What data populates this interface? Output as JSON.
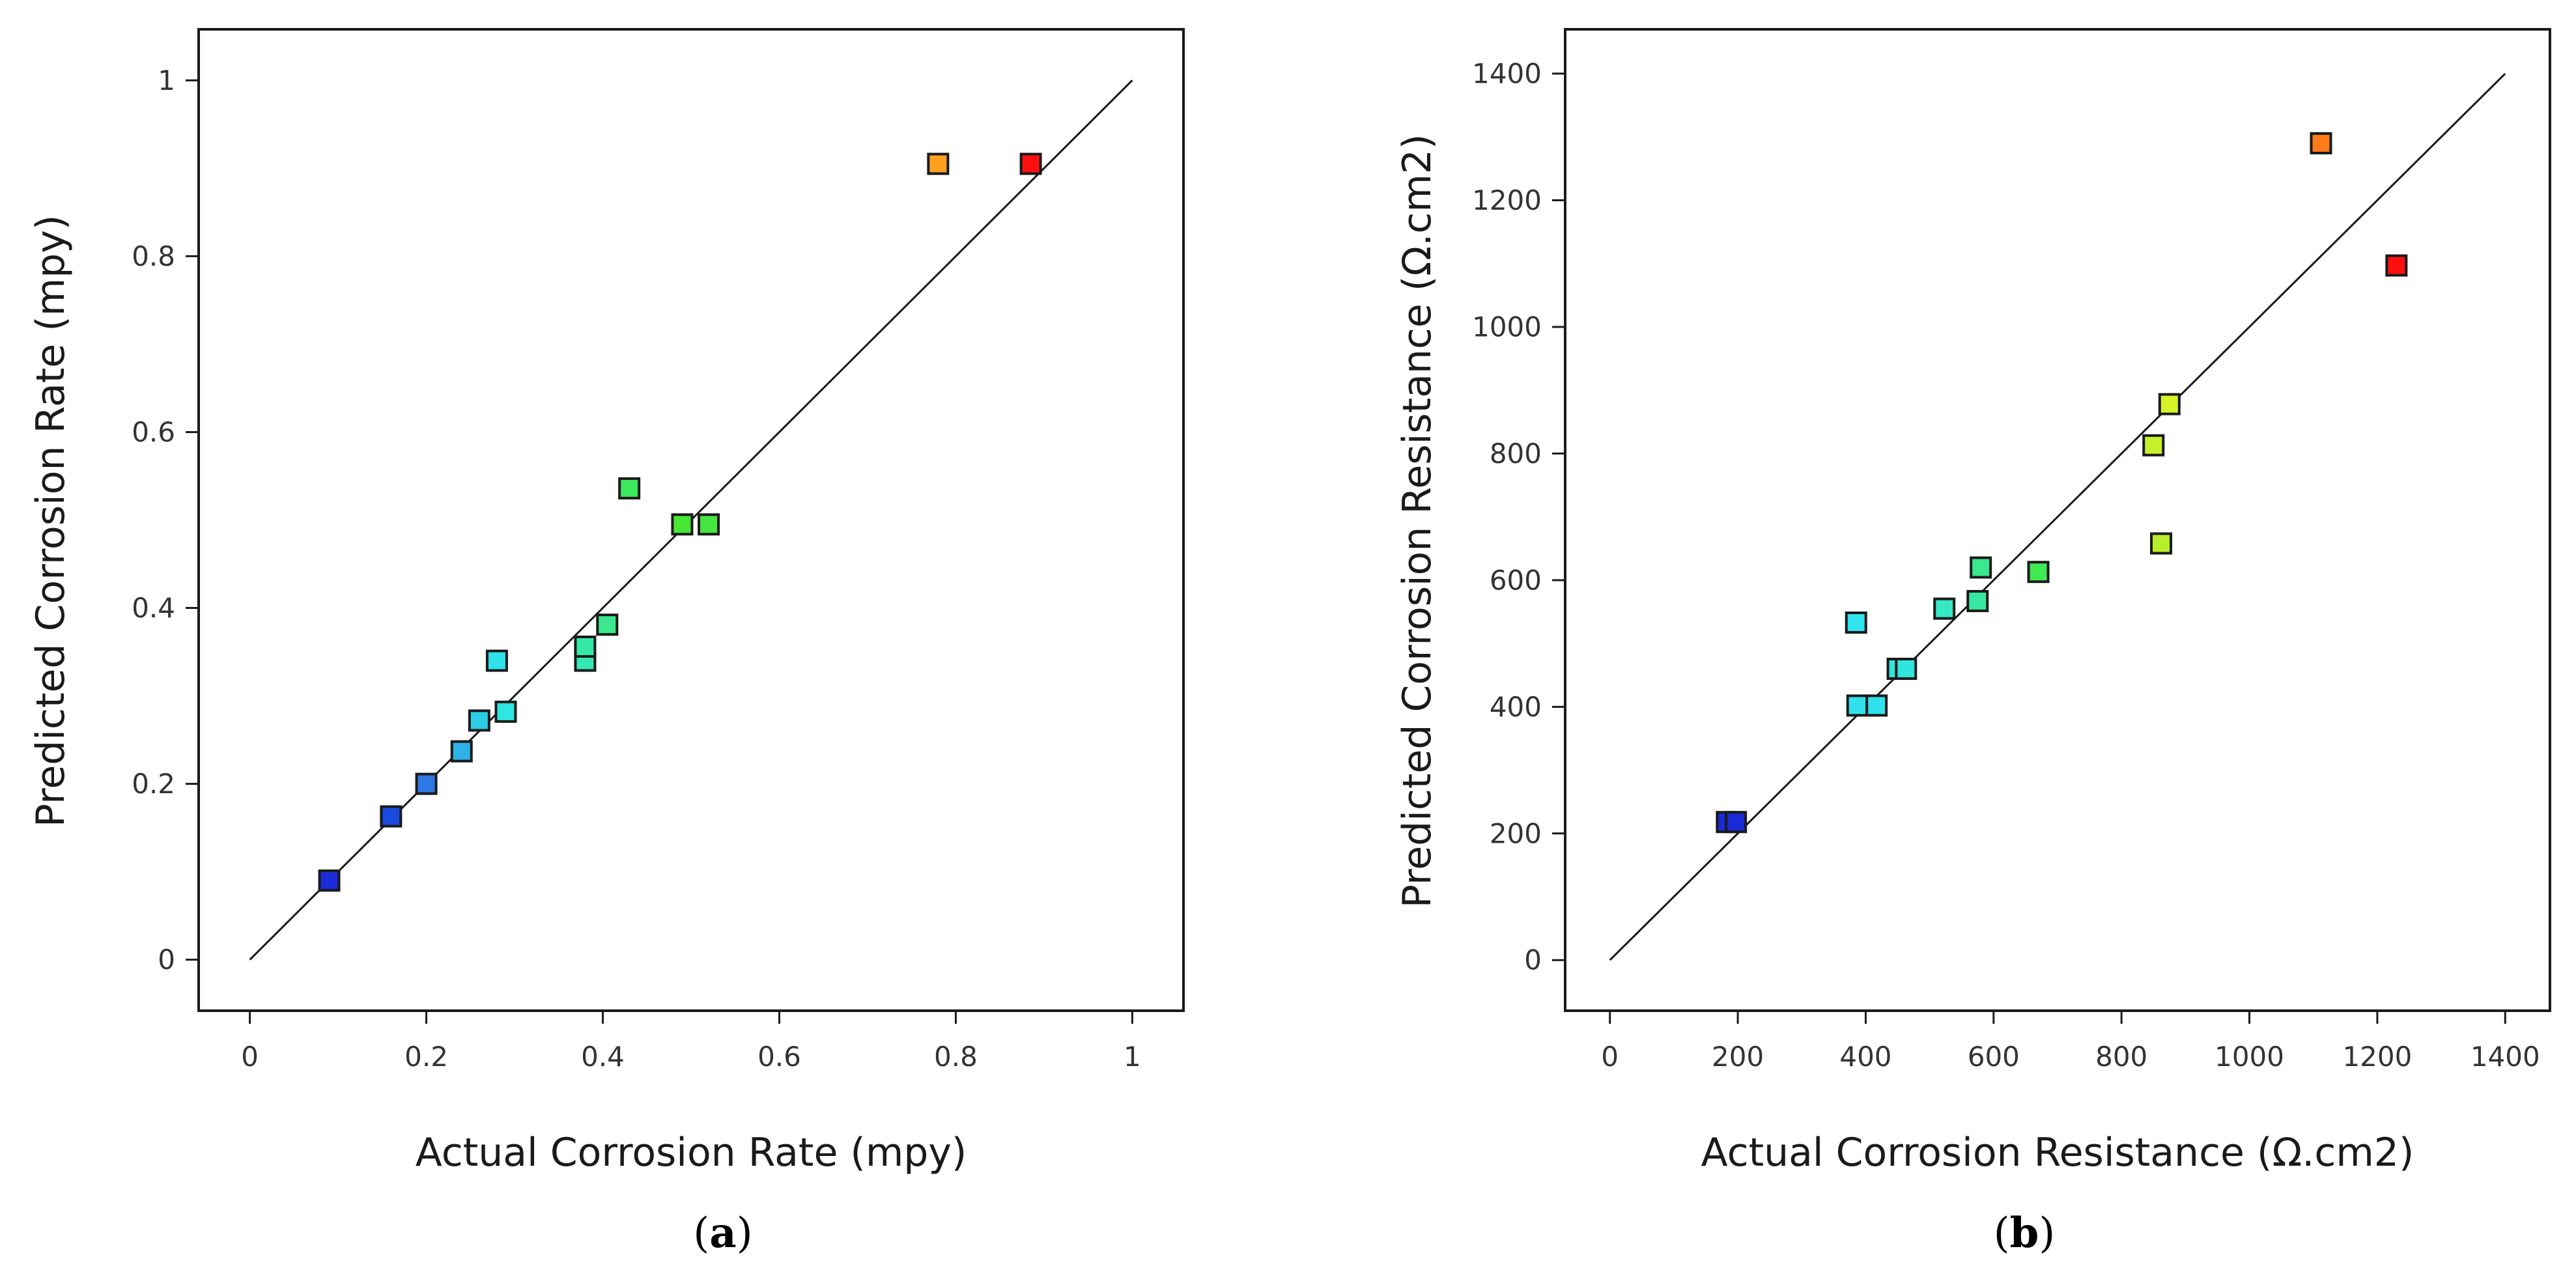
{
  "chart_data": [
    {
      "type": "scatter",
      "panel_label": "a",
      "xlabel": "Actual Corrosion Rate (mpy)",
      "ylabel": "Predicted Corrosion Rate (mpy)",
      "xlim": [
        -0.058,
        1.058
      ],
      "ylim": [
        -0.058,
        1.058
      ],
      "xticks": [
        0,
        0.2,
        0.4,
        0.6,
        0.8,
        1
      ],
      "xtick_labels": [
        "0",
        "0.2",
        "0.4",
        "0.6",
        "0.8",
        "1"
      ],
      "yticks": [
        0,
        0.2,
        0.4,
        0.6,
        0.8,
        1
      ],
      "ytick_labels": [
        "0",
        "0.2",
        "0.4",
        "0.6",
        "0.8",
        "1"
      ],
      "reference_line": {
        "from": [
          0,
          0
        ],
        "to": [
          1,
          1
        ]
      },
      "grid": false,
      "points": [
        {
          "x": 0.09,
          "y": 0.09,
          "color": "#1a2bd8"
        },
        {
          "x": 0.16,
          "y": 0.163,
          "color": "#1a4ae0"
        },
        {
          "x": 0.2,
          "y": 0.2,
          "color": "#2e79e6"
        },
        {
          "x": 0.24,
          "y": 0.237,
          "color": "#2fb2e8"
        },
        {
          "x": 0.26,
          "y": 0.272,
          "color": "#2ecde6"
        },
        {
          "x": 0.28,
          "y": 0.34,
          "color": "#2fe3ea"
        },
        {
          "x": 0.29,
          "y": 0.282,
          "color": "#2fe6e0"
        },
        {
          "x": 0.38,
          "y": 0.34,
          "color": "#35e8b6"
        },
        {
          "x": 0.38,
          "y": 0.356,
          "color": "#35e8a8"
        },
        {
          "x": 0.405,
          "y": 0.381,
          "color": "#3ce88c"
        },
        {
          "x": 0.43,
          "y": 0.536,
          "color": "#3be85e"
        },
        {
          "x": 0.49,
          "y": 0.495,
          "color": "#48e634"
        },
        {
          "x": 0.52,
          "y": 0.495,
          "color": "#46e640"
        },
        {
          "x": 0.78,
          "y": 0.905,
          "color": "#ffa01e"
        },
        {
          "x": 0.885,
          "y": 0.905,
          "color": "#ff1010"
        }
      ]
    },
    {
      "type": "scatter",
      "panel_label": "b",
      "xlabel": "Actual Corrosion Resistance (Ω.cm2)",
      "ylabel": "Predicted Corrosion Resistance (Ω.cm2)",
      "xlim": [
        -70,
        1470
      ],
      "ylim": [
        -80,
        1470
      ],
      "xticks": [
        0,
        200,
        400,
        600,
        800,
        1000,
        1200,
        1400
      ],
      "xtick_labels": [
        "0",
        "200",
        "400",
        "600",
        "800",
        "1000",
        "1200",
        "1400"
      ],
      "yticks": [
        0,
        200,
        400,
        600,
        800,
        1000,
        1200,
        1400
      ],
      "ytick_labels": [
        "0",
        "200",
        "400",
        "600",
        "800",
        "1000",
        "1200",
        "1400"
      ],
      "reference_line": {
        "from": [
          0,
          0
        ],
        "to": [
          1400,
          1400
        ]
      },
      "grid": false,
      "points": [
        {
          "x": 183,
          "y": 218,
          "color": "#1a2bd8"
        },
        {
          "x": 197,
          "y": 218,
          "color": "#1a2bd8"
        },
        {
          "x": 385,
          "y": 533,
          "color": "#30e3ec"
        },
        {
          "x": 387,
          "y": 402,
          "color": "#30e0ec"
        },
        {
          "x": 417,
          "y": 402,
          "color": "#30e0ec"
        },
        {
          "x": 450,
          "y": 460,
          "color": "#30e6dc"
        },
        {
          "x": 463,
          "y": 460,
          "color": "#30e6dc"
        },
        {
          "x": 523,
          "y": 555,
          "color": "#36e8c4"
        },
        {
          "x": 575,
          "y": 567,
          "color": "#38e8a2"
        },
        {
          "x": 580,
          "y": 620,
          "color": "#38e88e"
        },
        {
          "x": 670,
          "y": 613,
          "color": "#40e854"
        },
        {
          "x": 850,
          "y": 813,
          "color": "#c8f02a"
        },
        {
          "x": 862,
          "y": 658,
          "color": "#b8ef2c"
        },
        {
          "x": 875,
          "y": 878,
          "color": "#d8f22a"
        },
        {
          "x": 1112,
          "y": 1290,
          "color": "#ff7a1a"
        },
        {
          "x": 1230,
          "y": 1097,
          "color": "#ff1010"
        }
      ]
    }
  ]
}
